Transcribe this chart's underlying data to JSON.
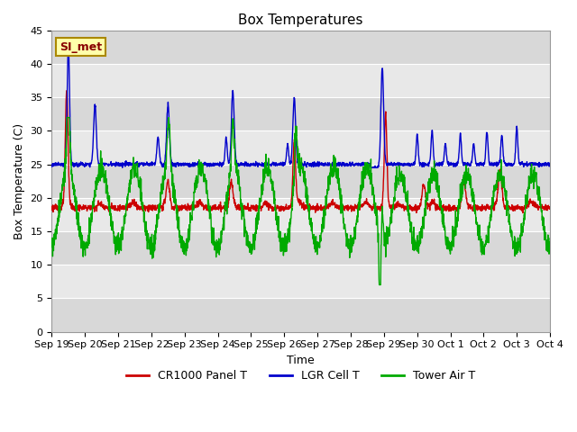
{
  "title": "Box Temperatures",
  "xlabel": "Time",
  "ylabel": "Box Temperature (C)",
  "ylim": [
    0,
    45
  ],
  "background_color": "#ffffff",
  "plot_bg_color": "#d8d8d8",
  "band_color": "#e8e8e8",
  "legend_entries": [
    "CR1000 Panel T",
    "LGR Cell T",
    "Tower Air T"
  ],
  "line_colors": [
    "#cc0000",
    "#0000cc",
    "#00aa00"
  ],
  "xtick_labels": [
    "Sep 19",
    "Sep 20",
    "Sep 21",
    "Sep 22",
    "Sep 23",
    "Sep 24",
    "Sep 25",
    "Sep 26",
    "Sep 27",
    "Sep 28",
    "Sep 29",
    "Sep 30",
    "Oct 1",
    "Oct 2",
    "Oct 3",
    "Oct 4"
  ],
  "annotation_text": "SI_met",
  "annotation_bg": "#ffffaa",
  "annotation_border": "#aa8800",
  "annotation_text_color": "#880000",
  "title_fontsize": 11,
  "label_fontsize": 9,
  "tick_fontsize": 8,
  "legend_fontsize": 9,
  "line_width": 1.0,
  "n_days": 15
}
